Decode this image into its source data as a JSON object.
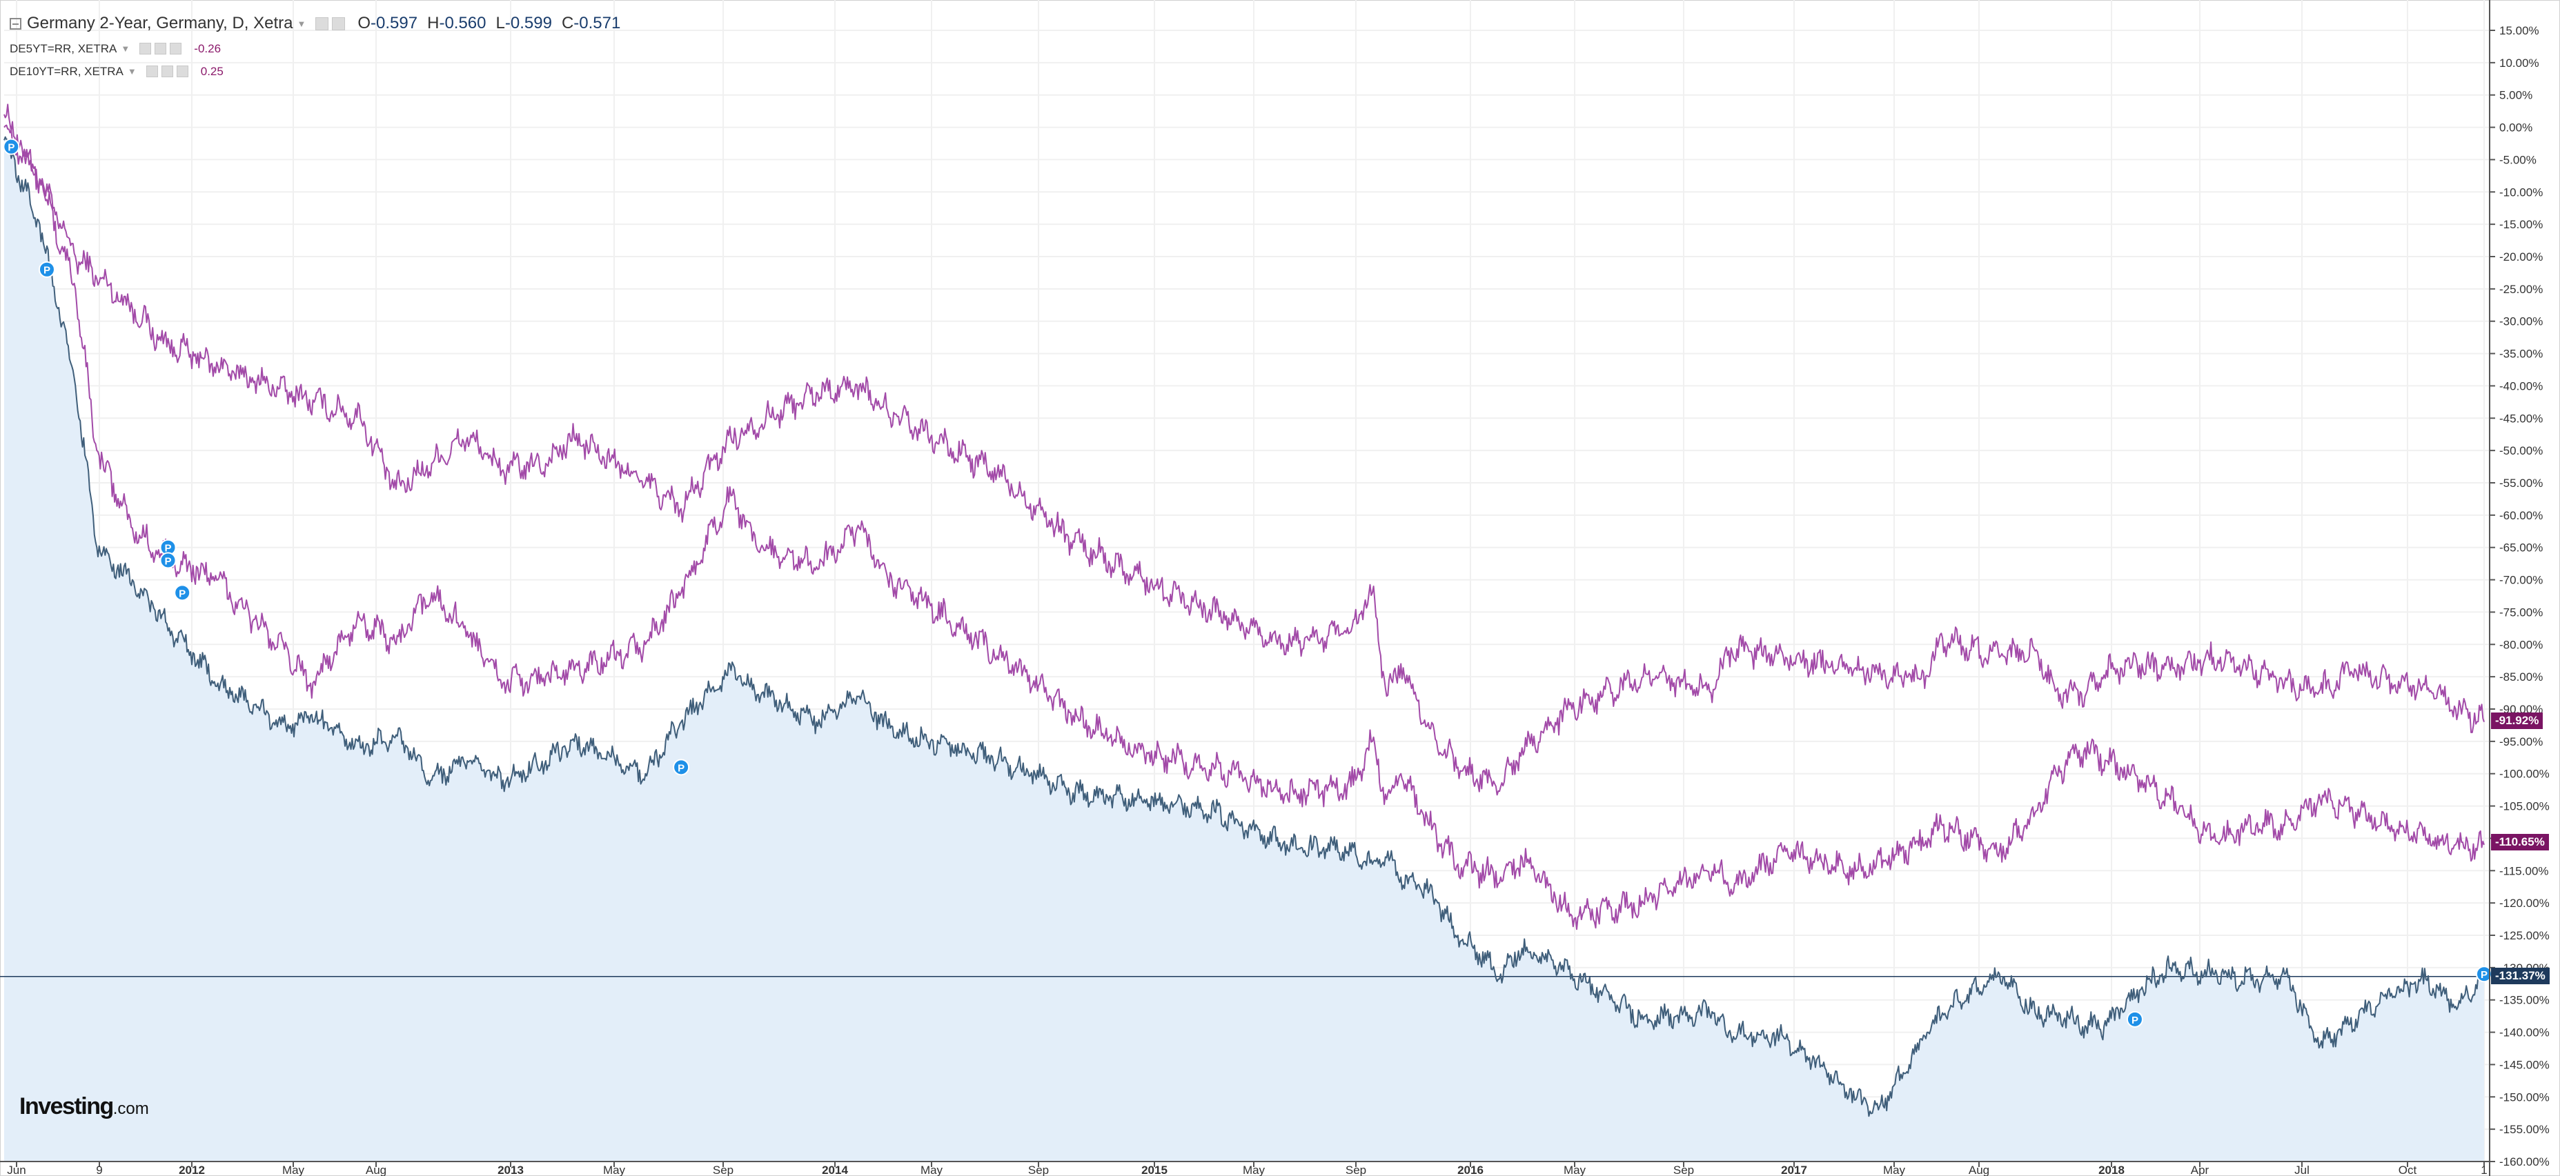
{
  "legend": {
    "main_title": "Germany 2-Year, Germany, D, Xetra",
    "ohlc": [
      {
        "key": "O",
        "value": "-0.597"
      },
      {
        "key": "H",
        "value": "-0.560"
      },
      {
        "key": "L",
        "value": "-0.599"
      },
      {
        "key": "C",
        "value": "-0.571"
      }
    ],
    "overlays": [
      {
        "label": "DE5YT=RR, XETRA",
        "value": "-0.26"
      },
      {
        "label": "DE10YT=RR, XETRA",
        "value": "0.25"
      }
    ]
  },
  "watermark": {
    "brand": "Investing",
    "suffix": ".com"
  },
  "colors": {
    "main": "#3f5e7a",
    "area": "#e3eef9",
    "overlay": "#a24aa8",
    "tag_overlay": "#7a1463",
    "tag_main": "#1e3a5c",
    "marker": "#1e90e8",
    "axis": "#555555",
    "grid": "#f0f0f0"
  },
  "icons": {
    "collapse": "minus-square-icon",
    "dropdown": "caret-down-icon",
    "settings": "gear-icon",
    "hide": "eye-icon",
    "remove": "close-icon",
    "event_marker": "p-marker-icon"
  },
  "chart_data": {
    "type": "line",
    "xaxis_ticks": [
      "Jun",
      "9",
      "2012",
      "May",
      "Aug",
      "2013",
      "May",
      "Sep",
      "2014",
      "May",
      "Sep",
      "2015",
      "May",
      "Sep",
      "2016",
      "May",
      "Sep",
      "2017",
      "May",
      "Aug",
      "2018",
      "Apr",
      "Jul",
      "Oct",
      "1"
    ],
    "xaxis_bold": [
      "2012",
      "2013",
      "2014",
      "2015",
      "2016",
      "2017",
      "2018"
    ],
    "yaxis": {
      "min": -160,
      "max": 15,
      "step": 5,
      "unit": "%"
    },
    "grid": true,
    "last_values": [
      "-91.92%",
      "-110.65%",
      "-131.37%"
    ],
    "series": [
      {
        "name": "DE10YT=RR, XETRA",
        "last": -91.92,
        "points": [
          [
            0,
            2
          ],
          [
            0.5,
            -8
          ],
          [
            1,
            -20
          ],
          [
            1.8,
            -28
          ],
          [
            2.2,
            -33
          ],
          [
            3,
            -37
          ],
          [
            4,
            -41
          ],
          [
            5,
            -45
          ],
          [
            5.5,
            -56
          ],
          [
            6,
            -52
          ],
          [
            6.5,
            -48
          ],
          [
            7,
            -53
          ],
          [
            7.6,
            -52
          ],
          [
            8,
            -48
          ],
          [
            9,
            -55
          ],
          [
            9.5,
            -59
          ],
          [
            10.2,
            -48
          ],
          [
            11.4,
            -41
          ],
          [
            12,
            -40
          ],
          [
            12.4,
            -44
          ],
          [
            13,
            -48
          ],
          [
            14,
            -54
          ],
          [
            15,
            -64
          ],
          [
            16,
            -70
          ],
          [
            17,
            -75
          ],
          [
            18,
            -80
          ],
          [
            18.9,
            -78
          ],
          [
            19.2,
            -72
          ],
          [
            19.4,
            -88
          ],
          [
            19.6,
            -83
          ],
          [
            20,
            -93
          ],
          [
            20.4,
            -99
          ],
          [
            21,
            -102
          ],
          [
            21.3,
            -96
          ],
          [
            22,
            -90
          ],
          [
            23,
            -85
          ],
          [
            24,
            -87
          ],
          [
            24.2,
            -81
          ],
          [
            25,
            -82
          ],
          [
            26,
            -84
          ],
          [
            27,
            -85
          ],
          [
            27.2,
            -79
          ],
          [
            28,
            -82
          ],
          [
            28.5,
            -81
          ],
          [
            28.8,
            -87
          ],
          [
            29.2,
            -88
          ],
          [
            29.5,
            -84
          ],
          [
            30,
            -83
          ],
          [
            30.4,
            -84
          ],
          [
            31,
            -82
          ],
          [
            31.6,
            -84
          ],
          [
            32,
            -86
          ],
          [
            32.5,
            -87
          ],
          [
            33,
            -84
          ],
          [
            33.5,
            -86
          ],
          [
            34,
            -87
          ],
          [
            34.4,
            -90
          ],
          [
            34.8,
            -92
          ]
        ]
      },
      {
        "name": "DE5YT=RR, XETRA",
        "last": -110.65,
        "points": [
          [
            0,
            0
          ],
          [
            0.5,
            -8
          ],
          [
            1,
            -25
          ],
          [
            1.3,
            -50
          ],
          [
            1.8,
            -62
          ],
          [
            2.2,
            -66
          ],
          [
            3,
            -70
          ],
          [
            4,
            -82
          ],
          [
            4.3,
            -86
          ],
          [
            5,
            -76
          ],
          [
            5.5,
            -80
          ],
          [
            6,
            -72
          ],
          [
            6.5,
            -78
          ],
          [
            7,
            -86
          ],
          [
            7.6,
            -85
          ],
          [
            8,
            -84
          ],
          [
            9,
            -80
          ],
          [
            9.5,
            -72
          ],
          [
            10.2,
            -57
          ],
          [
            10.5,
            -64
          ],
          [
            11.4,
            -68
          ],
          [
            12,
            -62
          ],
          [
            12.4,
            -70
          ],
          [
            13,
            -74
          ],
          [
            14,
            -82
          ],
          [
            15,
            -91
          ],
          [
            16,
            -97
          ],
          [
            17,
            -99
          ],
          [
            18,
            -103
          ],
          [
            18.9,
            -102
          ],
          [
            19.2,
            -95
          ],
          [
            19.4,
            -104
          ],
          [
            19.6,
            -100
          ],
          [
            20,
            -108
          ],
          [
            20.4,
            -114
          ],
          [
            21,
            -116
          ],
          [
            21.3,
            -113
          ],
          [
            22,
            -122
          ],
          [
            23,
            -120
          ],
          [
            24,
            -114
          ],
          [
            24.2,
            -118
          ],
          [
            25,
            -112
          ],
          [
            26,
            -115
          ],
          [
            27,
            -110
          ],
          [
            27.2,
            -108
          ],
          [
            28,
            -112
          ],
          [
            28.5,
            -106
          ],
          [
            28.8,
            -100
          ],
          [
            29.2,
            -96
          ],
          [
            29.5,
            -98
          ],
          [
            30,
            -101
          ],
          [
            30.4,
            -104
          ],
          [
            31,
            -110
          ],
          [
            31.6,
            -108
          ],
          [
            32,
            -108
          ],
          [
            32.5,
            -104
          ],
          [
            33,
            -106
          ],
          [
            33.5,
            -108
          ],
          [
            34,
            -110
          ],
          [
            34.4,
            -111
          ],
          [
            34.8,
            -111
          ]
        ]
      },
      {
        "name": "Germany 2-Year",
        "last": -131.37,
        "points": [
          [
            0,
            -2
          ],
          [
            0.5,
            -15
          ],
          [
            1,
            -40
          ],
          [
            1.3,
            -65
          ],
          [
            1.8,
            -70
          ],
          [
            2.2,
            -76
          ],
          [
            3,
            -86
          ],
          [
            4,
            -93
          ],
          [
            4.3,
            -91
          ],
          [
            5,
            -96
          ],
          [
            5.5,
            -94
          ],
          [
            6,
            -101
          ],
          [
            6.5,
            -98
          ],
          [
            7,
            -101
          ],
          [
            7.6,
            -98
          ],
          [
            8,
            -95
          ],
          [
            9,
            -100
          ],
          [
            9.5,
            -92
          ],
          [
            10.2,
            -84
          ],
          [
            10.5,
            -87
          ],
          [
            11.4,
            -92
          ],
          [
            12,
            -88
          ],
          [
            12.4,
            -93
          ],
          [
            13,
            -95
          ],
          [
            14,
            -98
          ],
          [
            15,
            -103
          ],
          [
            16,
            -104
          ],
          [
            17,
            -106
          ],
          [
            18,
            -111
          ],
          [
            18.9,
            -112
          ],
          [
            19.2,
            -114
          ],
          [
            19.4,
            -113
          ],
          [
            19.6,
            -116
          ],
          [
            20,
            -118
          ],
          [
            20.4,
            -125
          ],
          [
            21,
            -131
          ],
          [
            21.3,
            -127
          ],
          [
            22,
            -131
          ],
          [
            23,
            -138
          ],
          [
            24,
            -137
          ],
          [
            24.2,
            -140
          ],
          [
            25,
            -141
          ],
          [
            26,
            -150
          ],
          [
            26.3,
            -152
          ],
          [
            27,
            -140
          ],
          [
            27.2,
            -137
          ],
          [
            28,
            -131
          ],
          [
            28.5,
            -137
          ],
          [
            28.8,
            -137
          ],
          [
            29.2,
            -139
          ],
          [
            29.5,
            -139
          ],
          [
            30,
            -133
          ],
          [
            30.4,
            -130
          ],
          [
            31,
            -131
          ],
          [
            31.6,
            -132
          ],
          [
            32,
            -131
          ],
          [
            32.5,
            -142
          ],
          [
            33,
            -138
          ],
          [
            33.5,
            -134
          ],
          [
            34,
            -132
          ],
          [
            34.4,
            -136
          ],
          [
            34.8,
            -131
          ]
        ]
      }
    ],
    "event_markers": [
      [
        0.1,
        -3
      ],
      [
        0.6,
        -22
      ],
      [
        2.3,
        -65
      ],
      [
        2.3,
        -67
      ],
      [
        2.5,
        -72
      ],
      [
        9.5,
        -99
      ],
      [
        29.9,
        -138
      ],
      [
        34.8,
        -131
      ]
    ]
  }
}
